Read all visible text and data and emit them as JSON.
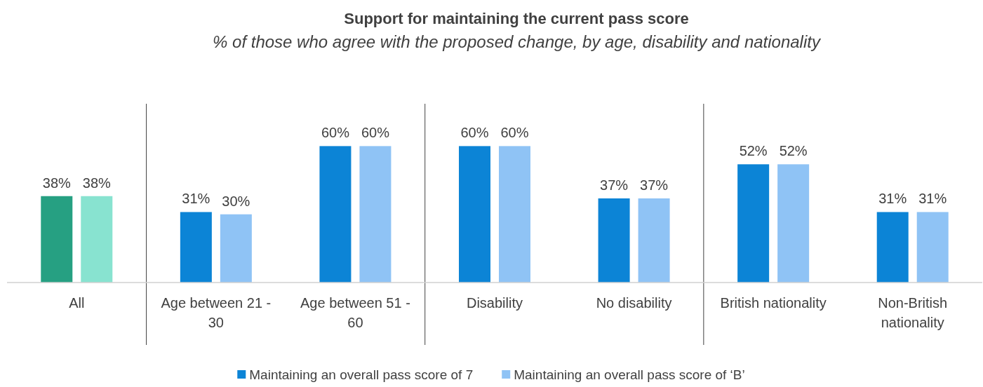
{
  "chart_data": {
    "type": "bar",
    "title": "Support for maintaining the current pass score",
    "subtitle": "% of those who agree with the proposed change, by age, disability and nationality",
    "categories": [
      "All",
      "Age between 21 - 30",
      "Age between 51 - 60",
      "Disability",
      "No disability",
      "British nationality",
      "Non-British nationality"
    ],
    "series": [
      {
        "name": "Maintaining an overall pass score of 7",
        "color": "#0c84d6",
        "colors": [
          "#26a082",
          "#0c84d6",
          "#0c84d6",
          "#0c84d6",
          "#0c84d6",
          "#0c84d6",
          "#0c84d6"
        ],
        "values": [
          38,
          31,
          60,
          60,
          37,
          52,
          31
        ],
        "value_labels": [
          "38%",
          "31%",
          "60%",
          "60%",
          "37%",
          "52%",
          "31%"
        ]
      },
      {
        "name": "Maintaining an overall pass score of ‘B’",
        "color": "#8fc3f5",
        "colors": [
          "#88e3d0",
          "#8fc3f5",
          "#8fc3f5",
          "#8fc3f5",
          "#8fc3f5",
          "#8fc3f5",
          "#8fc3f5"
        ],
        "values": [
          38,
          30,
          60,
          60,
          37,
          52,
          31
        ],
        "value_labels": [
          "38%",
          "30%",
          "60%",
          "60%",
          "37%",
          "52%",
          "31%"
        ]
      }
    ],
    "legend": "bottom",
    "grid": false
  }
}
